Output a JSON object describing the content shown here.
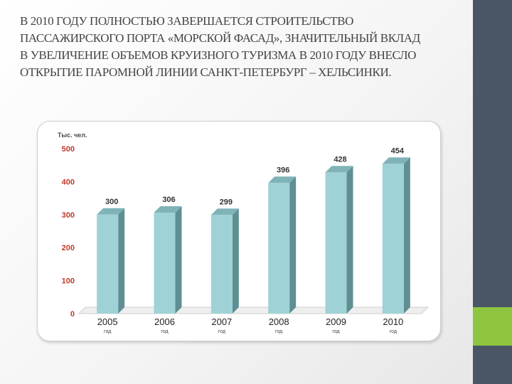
{
  "slide": {
    "heading_lines": [
      "В 2010 ГОДУ ПОЛНОСТЬЮ ЗАВЕРШАЕТСЯ СТРОИТЕЛЬСТВО",
      "ПАССАЖИРСКОГО ПОРТА «МОРСКОЙ ФАСАД», ЗНАЧИТЕЛЬНЫЙ ВКЛАД",
      "В УВЕЛИЧЕНИЕ ОБЪЕМОВ КРУИЗНОГО ТУРИЗМА В 2010 ГОДУ ВНЕСЛО",
      "ОТКРЫТИЕ ПАРОМНОЙ ЛИНИИ САНКТ-ПЕТЕРБУРГ – ХЕЛЬСИНКИ."
    ],
    "side_bar_color": "#4a5666",
    "accent_color": "#8ec63f"
  },
  "chart_data": {
    "type": "bar",
    "ylabel": "Тыс. чел.",
    "categories": [
      "2005",
      "2006",
      "2007",
      "2008",
      "2009",
      "2010"
    ],
    "category_suffix": "год",
    "values": [
      300,
      306,
      299,
      396,
      428,
      454
    ],
    "ylim": [
      0,
      500
    ],
    "yticks": [
      0,
      100,
      200,
      300,
      400,
      500
    ],
    "bar_color": "#9fd2d6",
    "bar_side_color": "#5f8f93",
    "axis_label_color": "#c0392b",
    "grid": false
  }
}
